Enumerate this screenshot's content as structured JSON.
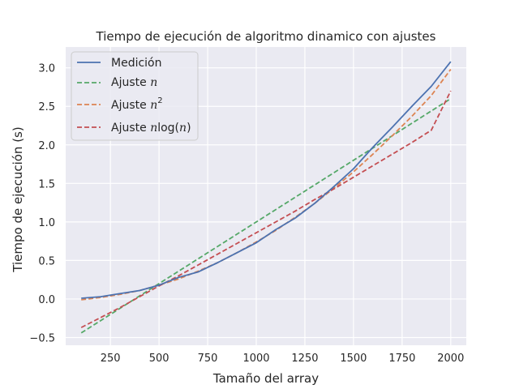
{
  "chart_data": {
    "type": "line",
    "title": "Tiempo de ejecución de algoritmo dinamico con ajustes",
    "xlabel": "Tamaño del array",
    "ylabel": "Tiempo de ejecución (s)",
    "xlim": [
      20,
      2080
    ],
    "ylim": [
      -0.6,
      3.27
    ],
    "xticks": [
      250,
      500,
      750,
      1000,
      1250,
      1500,
      1750,
      2000
    ],
    "yticks": [
      -0.5,
      0.0,
      0.5,
      1.0,
      1.5,
      2.0,
      2.5,
      3.0
    ],
    "xtick_labels": [
      "250",
      "500",
      "750",
      "1000",
      "1250",
      "1500",
      "1750",
      "2000"
    ],
    "ytick_labels": [
      "−0.5",
      "0.0",
      "0.5",
      "1.0",
      "1.5",
      "2.0",
      "2.5",
      "3.0"
    ],
    "grid": true,
    "legend_position": "top-left",
    "background": "#eaeaf2",
    "series": [
      {
        "name": "Medición",
        "legend_base": "Medición",
        "legend_math": "",
        "style": "solid",
        "color": "#4c72b0",
        "x": [
          100,
          200,
          300,
          400,
          500,
          600,
          700,
          800,
          900,
          1000,
          1100,
          1200,
          1300,
          1400,
          1500,
          1600,
          1700,
          1800,
          1900,
          2000
        ],
        "y": [
          0.01,
          0.03,
          0.07,
          0.11,
          0.18,
          0.28,
          0.35,
          0.47,
          0.6,
          0.73,
          0.9,
          1.05,
          1.24,
          1.46,
          1.69,
          1.97,
          2.23,
          2.5,
          2.76,
          3.08
        ]
      },
      {
        "name": "Ajuste n",
        "legend_base": "Ajuste ",
        "legend_math": "n",
        "style": "dashed",
        "color": "#55a868",
        "x": [
          100,
          2000
        ],
        "y": [
          -0.44,
          2.6
        ]
      },
      {
        "name": "Ajuste n^2",
        "legend_base": "Ajuste ",
        "legend_math": "n",
        "legend_sup": "2",
        "style": "dashed",
        "color": "#dd8452",
        "x": [
          100,
          200,
          300,
          400,
          500,
          600,
          700,
          800,
          900,
          1000,
          1100,
          1200,
          1300,
          1400,
          1500,
          1600,
          1700,
          1800,
          1900,
          2000
        ],
        "y": [
          -0.01,
          0.02,
          0.06,
          0.11,
          0.18,
          0.26,
          0.36,
          0.47,
          0.6,
          0.74,
          0.89,
          1.06,
          1.24,
          1.44,
          1.65,
          1.88,
          2.12,
          2.37,
          2.64,
          2.98
        ]
      },
      {
        "name": "Ajuste n log(n)",
        "legend_base": "Ajuste ",
        "legend_math": "n",
        "legend_log": "log(",
        "legend_end": ")",
        "style": "dashed",
        "color": "#c44e52",
        "x": [
          100,
          200,
          300,
          400,
          500,
          600,
          700,
          800,
          900,
          1000,
          1100,
          1200,
          1300,
          1400,
          1500,
          1600,
          1700,
          1800,
          1900,
          2000
        ],
        "y": [
          -0.37,
          -0.24,
          -0.11,
          0.03,
          0.17,
          0.3,
          0.44,
          0.58,
          0.72,
          0.86,
          1.0,
          1.14,
          1.29,
          1.43,
          1.58,
          1.73,
          1.88,
          2.03,
          2.19,
          2.7
        ]
      }
    ]
  }
}
